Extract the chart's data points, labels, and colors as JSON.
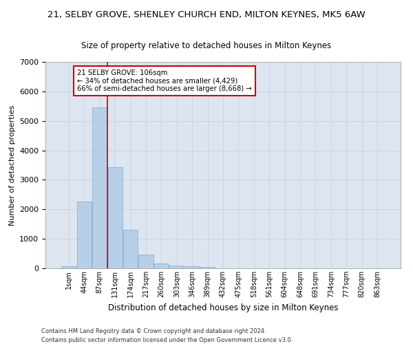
{
  "title": "21, SELBY GROVE, SHENLEY CHURCH END, MILTON KEYNES, MK5 6AW",
  "subtitle": "Size of property relative to detached houses in Milton Keynes",
  "xlabel": "Distribution of detached houses by size in Milton Keynes",
  "ylabel": "Number of detached properties",
  "footnote1": "Contains HM Land Registry data © Crown copyright and database right 2024.",
  "footnote2": "Contains public sector information licensed under the Open Government Licence v3.0.",
  "annotation_title": "21 SELBY GROVE: 106sqm",
  "annotation_line1": "← 34% of detached houses are smaller (4,429)",
  "annotation_line2": "66% of semi-detached houses are larger (8,668) →",
  "bar_color": "#b8cfe8",
  "bar_edge_color": "#7aaad0",
  "vline_color": "#cc0000",
  "vline_x": 2.5,
  "categories": [
    "1sqm",
    "44sqm",
    "87sqm",
    "131sqm",
    "174sqm",
    "217sqm",
    "260sqm",
    "303sqm",
    "346sqm",
    "389sqm",
    "432sqm",
    "475sqm",
    "518sqm",
    "561sqm",
    "604sqm",
    "648sqm",
    "691sqm",
    "734sqm",
    "777sqm",
    "820sqm",
    "863sqm"
  ],
  "bar_heights": [
    75,
    2270,
    5470,
    3440,
    1300,
    460,
    160,
    90,
    65,
    40,
    0,
    0,
    0,
    0,
    0,
    0,
    0,
    0,
    0,
    0,
    0
  ],
  "ylim": [
    0,
    7000
  ],
  "yticks": [
    0,
    1000,
    2000,
    3000,
    4000,
    5000,
    6000,
    7000
  ],
  "grid_color": "#c8d0dc",
  "bg_color": "#dde6f0",
  "title_fontsize": 9.5,
  "subtitle_fontsize": 8.5,
  "footnote_fontsize": 6.0
}
